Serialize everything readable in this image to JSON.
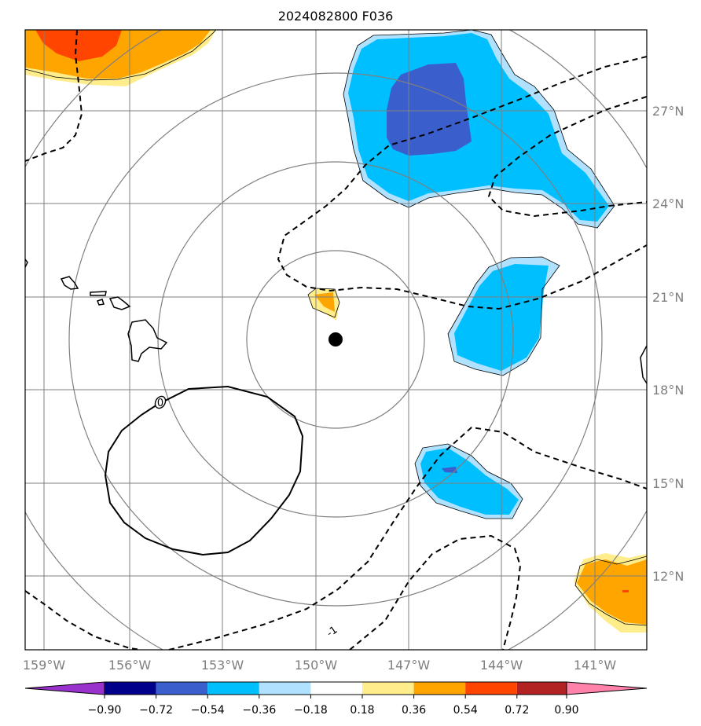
{
  "title": "2024082800 F036",
  "x_axis": {
    "ticks": [
      {
        "lon": -159,
        "label": "159°W"
      },
      {
        "lon": -156,
        "label": "156°W"
      },
      {
        "lon": -153,
        "label": "153°W"
      },
      {
        "lon": -150,
        "label": "150°W"
      },
      {
        "lon": -147,
        "label": "147°W"
      },
      {
        "lon": -144,
        "label": "144°W"
      },
      {
        "lon": -141,
        "label": "141°W"
      }
    ]
  },
  "y_axis": {
    "ticks": [
      {
        "lat": 27,
        "label": "27°N"
      },
      {
        "lat": 24,
        "label": "24°N"
      },
      {
        "lat": 21,
        "label": "21°N"
      },
      {
        "lat": 18,
        "label": "18°N"
      },
      {
        "lat": 15,
        "label": "15°N"
      },
      {
        "lat": 12,
        "label": "12°N"
      }
    ]
  },
  "center_marker": {
    "lon": -149.9,
    "lat": 19.8
  },
  "contour_labels": {
    "solid": "0",
    "dashed": "-1"
  },
  "colorbar": {
    "colors": [
      "#9932cc",
      "#00008b",
      "#3a5fcd",
      "#00bfff",
      "#b0e2ff",
      "#ffffff",
      "#ffec8b",
      "#ffa500",
      "#ff4500",
      "#b22222",
      "#ff82ab"
    ],
    "labels": [
      "−0.90",
      "−0.72",
      "−0.54",
      "−0.36",
      "−0.18",
      "0.18",
      "0.36",
      "0.54",
      "0.72",
      "0.90"
    ]
  },
  "colors": {
    "deep_negative": "#3a5fcd",
    "negative": "#00bfff",
    "weak_negative": "#b0e2ff",
    "weak_positive": "#ffec8b",
    "positive": "#ffa500",
    "strong_positive": "#ff4500",
    "grid": "#7f7f7f"
  }
}
